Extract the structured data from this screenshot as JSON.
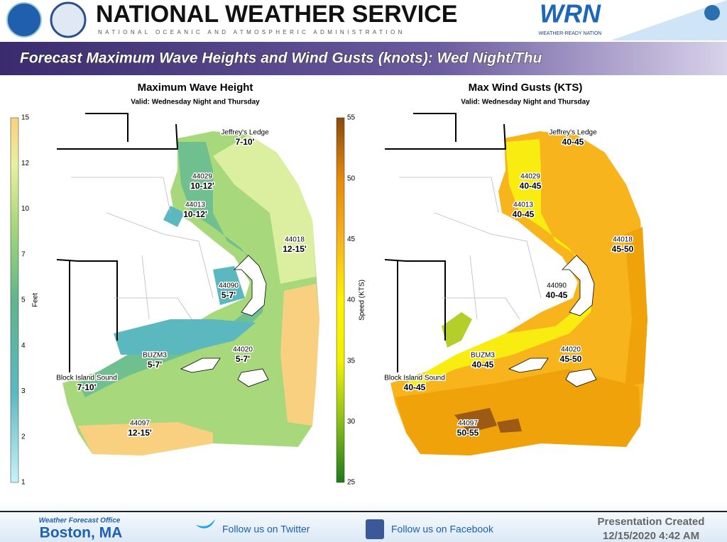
{
  "header": {
    "title": "NATIONAL WEATHER SERVICE",
    "subtitle": "NATIONAL OCEANIC AND ATMOSPHERIC ADMINISTRATION",
    "logo_text": "WRN",
    "logo_caption": "WEATHER-READY NATION"
  },
  "banner": "Forecast Maximum Wave Heights and Wind Gusts (knots): Wed Night/Thu",
  "panels": [
    {
      "title": "Maximum Wave Height",
      "valid": "Valid: Wednesday Night and Thursday",
      "legend": {
        "label": "Feet",
        "ticks": [
          15,
          12,
          10,
          7,
          5,
          4,
          3,
          2,
          1
        ]
      },
      "stations": [
        {
          "name": "Jeffrey's Ledge",
          "range": "7-10'"
        },
        {
          "name": "44029",
          "range": "10-12'"
        },
        {
          "name": "44013",
          "range": "10-12'"
        },
        {
          "name": "44018",
          "range": "12-15'"
        },
        {
          "name": "44090",
          "range": "5-7'"
        },
        {
          "name": "BUZM3",
          "range": "5-7'"
        },
        {
          "name": "44020",
          "range": "5-7'"
        },
        {
          "name": "Block Island Sound",
          "range": "7-10'"
        },
        {
          "name": "44097",
          "range": "12-15'"
        }
      ]
    },
    {
      "title": "Max Wind Gusts (KTS)",
      "valid": "Valid: Wednesday Night and Thursday",
      "legend": {
        "label": "Speed (KTS)",
        "ticks": [
          55,
          50,
          45,
          40,
          35,
          30,
          25
        ]
      },
      "stations": [
        {
          "name": "Jeffrey's Ledge",
          "range": "40-45"
        },
        {
          "name": "44029",
          "range": "40-45"
        },
        {
          "name": "44013",
          "range": "40-45"
        },
        {
          "name": "44018",
          "range": "45-50"
        },
        {
          "name": "44090",
          "range": "40-45"
        },
        {
          "name": "BUZM3",
          "range": "40-45"
        },
        {
          "name": "44020",
          "range": "45-50"
        },
        {
          "name": "Block Island Sound",
          "range": "40-45"
        },
        {
          "name": "44097",
          "range": "50-55"
        }
      ]
    }
  ],
  "footer": {
    "office_label": "Weather Forecast Office",
    "office": "Boston, MA",
    "twitter": "Follow us on Twitter",
    "facebook": "Follow us on Facebook",
    "created": "Presentation Created",
    "date": "12/15/2020 4:42 AM"
  }
}
